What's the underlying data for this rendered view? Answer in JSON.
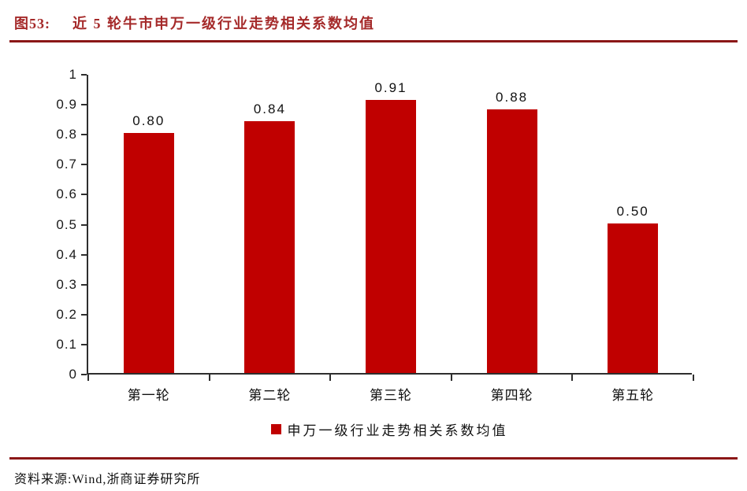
{
  "header": {
    "figure_label": "图53:",
    "title": "近 5 轮牛市申万一级行业走势相关系数均值"
  },
  "chart_data": {
    "type": "bar",
    "title": "近 5 轮牛市申万一级行业走势相关系数均值",
    "categories": [
      "第一轮",
      "第二轮",
      "第三轮",
      "第四轮",
      "第五轮"
    ],
    "values": [
      0.8,
      0.84,
      0.91,
      0.88,
      0.5
    ],
    "value_labels": [
      "0.80",
      "0.84",
      "0.91",
      "0.88",
      "0.50"
    ],
    "legend": "申万一级行业走势相关系数均值",
    "legend_position": "bottom",
    "xlabel": "",
    "ylabel": "",
    "ylim": [
      0,
      1
    ],
    "ytick_labels": [
      "0",
      "0.1",
      "0.2",
      "0.3",
      "0.4",
      "0.5",
      "0.6",
      "0.7",
      "0.8",
      "0.9",
      "1"
    ],
    "grid": false,
    "bar_color": "#C00000"
  },
  "footer": {
    "source": "资料来源:Wind,浙商证券研究所"
  },
  "colors": {
    "bar_red": "#C00000",
    "rule_red": "#8B1717",
    "title_red": "#A52A2A",
    "axis": "#2e2e2e"
  }
}
